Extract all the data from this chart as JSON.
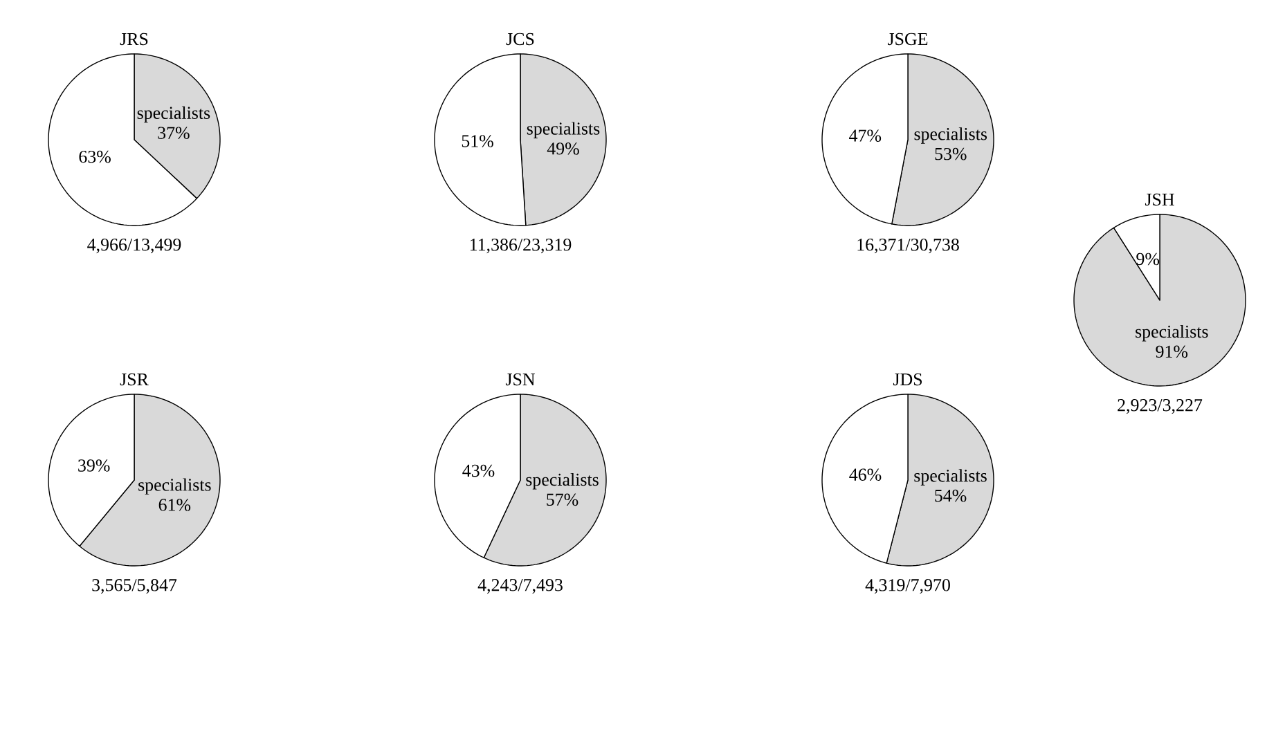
{
  "chart_data": [
    {
      "type": "pie",
      "title": "JRS",
      "categories": [
        "specialists",
        null
      ],
      "values": [
        37,
        63
      ],
      "colors": [
        "#d9d9d9",
        "#ffffff"
      ],
      "value_labels": [
        "37%",
        "63%"
      ],
      "annotations": [
        "4,966/13,499"
      ]
    },
    {
      "type": "pie",
      "title": "JCS",
      "categories": [
        "specialists",
        null
      ],
      "values": [
        49,
        51
      ],
      "colors": [
        "#d9d9d9",
        "#ffffff"
      ],
      "value_labels": [
        "49%",
        "51%"
      ],
      "annotations": [
        "11,386/23,319"
      ]
    },
    {
      "type": "pie",
      "title": "JSGE",
      "categories": [
        "specialists",
        null
      ],
      "values": [
        53,
        47
      ],
      "colors": [
        "#d9d9d9",
        "#ffffff"
      ],
      "value_labels": [
        "53%",
        "47%"
      ],
      "annotations": [
        "16,371/30,738"
      ]
    },
    {
      "type": "pie",
      "title": "JSH",
      "categories": [
        "specialists",
        null
      ],
      "values": [
        91,
        9
      ],
      "colors": [
        "#d9d9d9",
        "#ffffff"
      ],
      "value_labels": [
        "91%",
        "9%"
      ],
      "annotations": [
        "2,923/3,227"
      ]
    },
    {
      "type": "pie",
      "title": "JSR",
      "categories": [
        "specialists",
        null
      ],
      "values": [
        61,
        39
      ],
      "colors": [
        "#d9d9d9",
        "#ffffff"
      ],
      "value_labels": [
        "61%",
        "39%"
      ],
      "annotations": [
        "3,565/5,847"
      ]
    },
    {
      "type": "pie",
      "title": "JSN",
      "categories": [
        "specialists",
        null
      ],
      "values": [
        57,
        43
      ],
      "colors": [
        "#d9d9d9",
        "#ffffff"
      ],
      "value_labels": [
        "57%",
        "43%"
      ],
      "annotations": [
        "4,243/7,493"
      ]
    },
    {
      "type": "pie",
      "title": "JDS",
      "categories": [
        "specialists",
        null
      ],
      "values": [
        54,
        46
      ],
      "colors": [
        "#d9d9d9",
        "#ffffff"
      ],
      "value_labels": [
        "54%",
        "46%"
      ],
      "annotations": [
        "4,319/7,970"
      ]
    }
  ]
}
